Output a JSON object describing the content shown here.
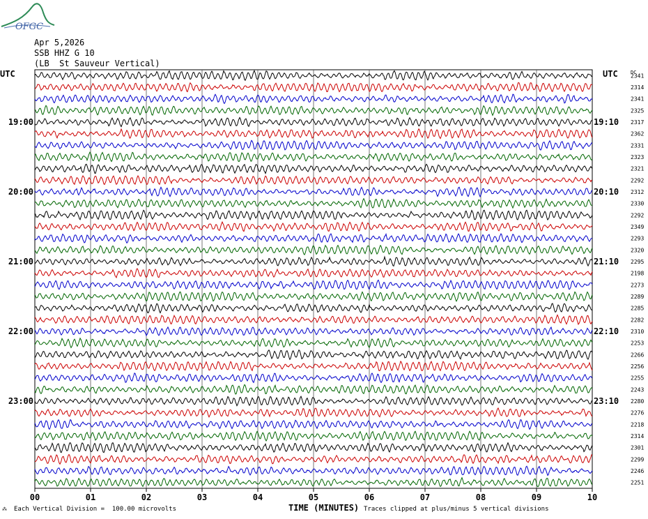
{
  "header": {
    "date": "Apr 5,2026",
    "station": "SSB HHZ G 10",
    "location": "(LB  St Sauveur Vertical)",
    "logo_text": "OFGC"
  },
  "axis": {
    "left_title": "UTC",
    "right_title": "UTC",
    "dc_title": "DC",
    "xlabel": "TIME (MINUTES)",
    "left_time_labels": [
      "19:00",
      "20:00",
      "21:00",
      "22:00",
      "23:00"
    ],
    "right_time_labels": [
      "19:10",
      "20:10",
      "21:10",
      "22:10",
      "23:10"
    ]
  },
  "footer": {
    "scale_note": "Each Vertical Division =  100.00 microvolts",
    "clip_note": "Traces clipped at plus/minus 5 vertical divisions"
  },
  "colors": {
    "trace_cycle": [
      "#000000",
      "#cc0000",
      "#0000cc",
      "#006600"
    ],
    "grid": "#000000"
  },
  "chart_data": {
    "type": "line",
    "title": "",
    "x_ticks": [
      "00",
      "01",
      "02",
      "03",
      "04",
      "05",
      "06",
      "07",
      "08",
      "09",
      "10"
    ],
    "xlim": [
      0,
      10
    ],
    "trace_count": 36,
    "traces_per_hour": 6,
    "minutes_per_trace": 10,
    "first_trace_time": "18:20",
    "labeled_trace_indices": [
      4,
      10,
      16,
      22,
      28
    ],
    "dc_offsets": [
      "2341",
      "2314",
      "2341",
      "2325",
      "2317",
      "2362",
      "2331",
      "2323",
      "2321",
      "2292",
      "2312",
      "2330",
      "2292",
      "2349",
      "2293",
      "2320",
      "2295",
      "2198",
      "2273",
      "2289",
      "2285",
      "2282",
      "2310",
      "2253",
      "2266",
      "2256",
      "2255",
      "2243",
      "2280",
      "2276",
      "2218",
      "2314",
      "2301",
      "2299",
      "2246",
      "2251"
    ],
    "grid": true
  }
}
